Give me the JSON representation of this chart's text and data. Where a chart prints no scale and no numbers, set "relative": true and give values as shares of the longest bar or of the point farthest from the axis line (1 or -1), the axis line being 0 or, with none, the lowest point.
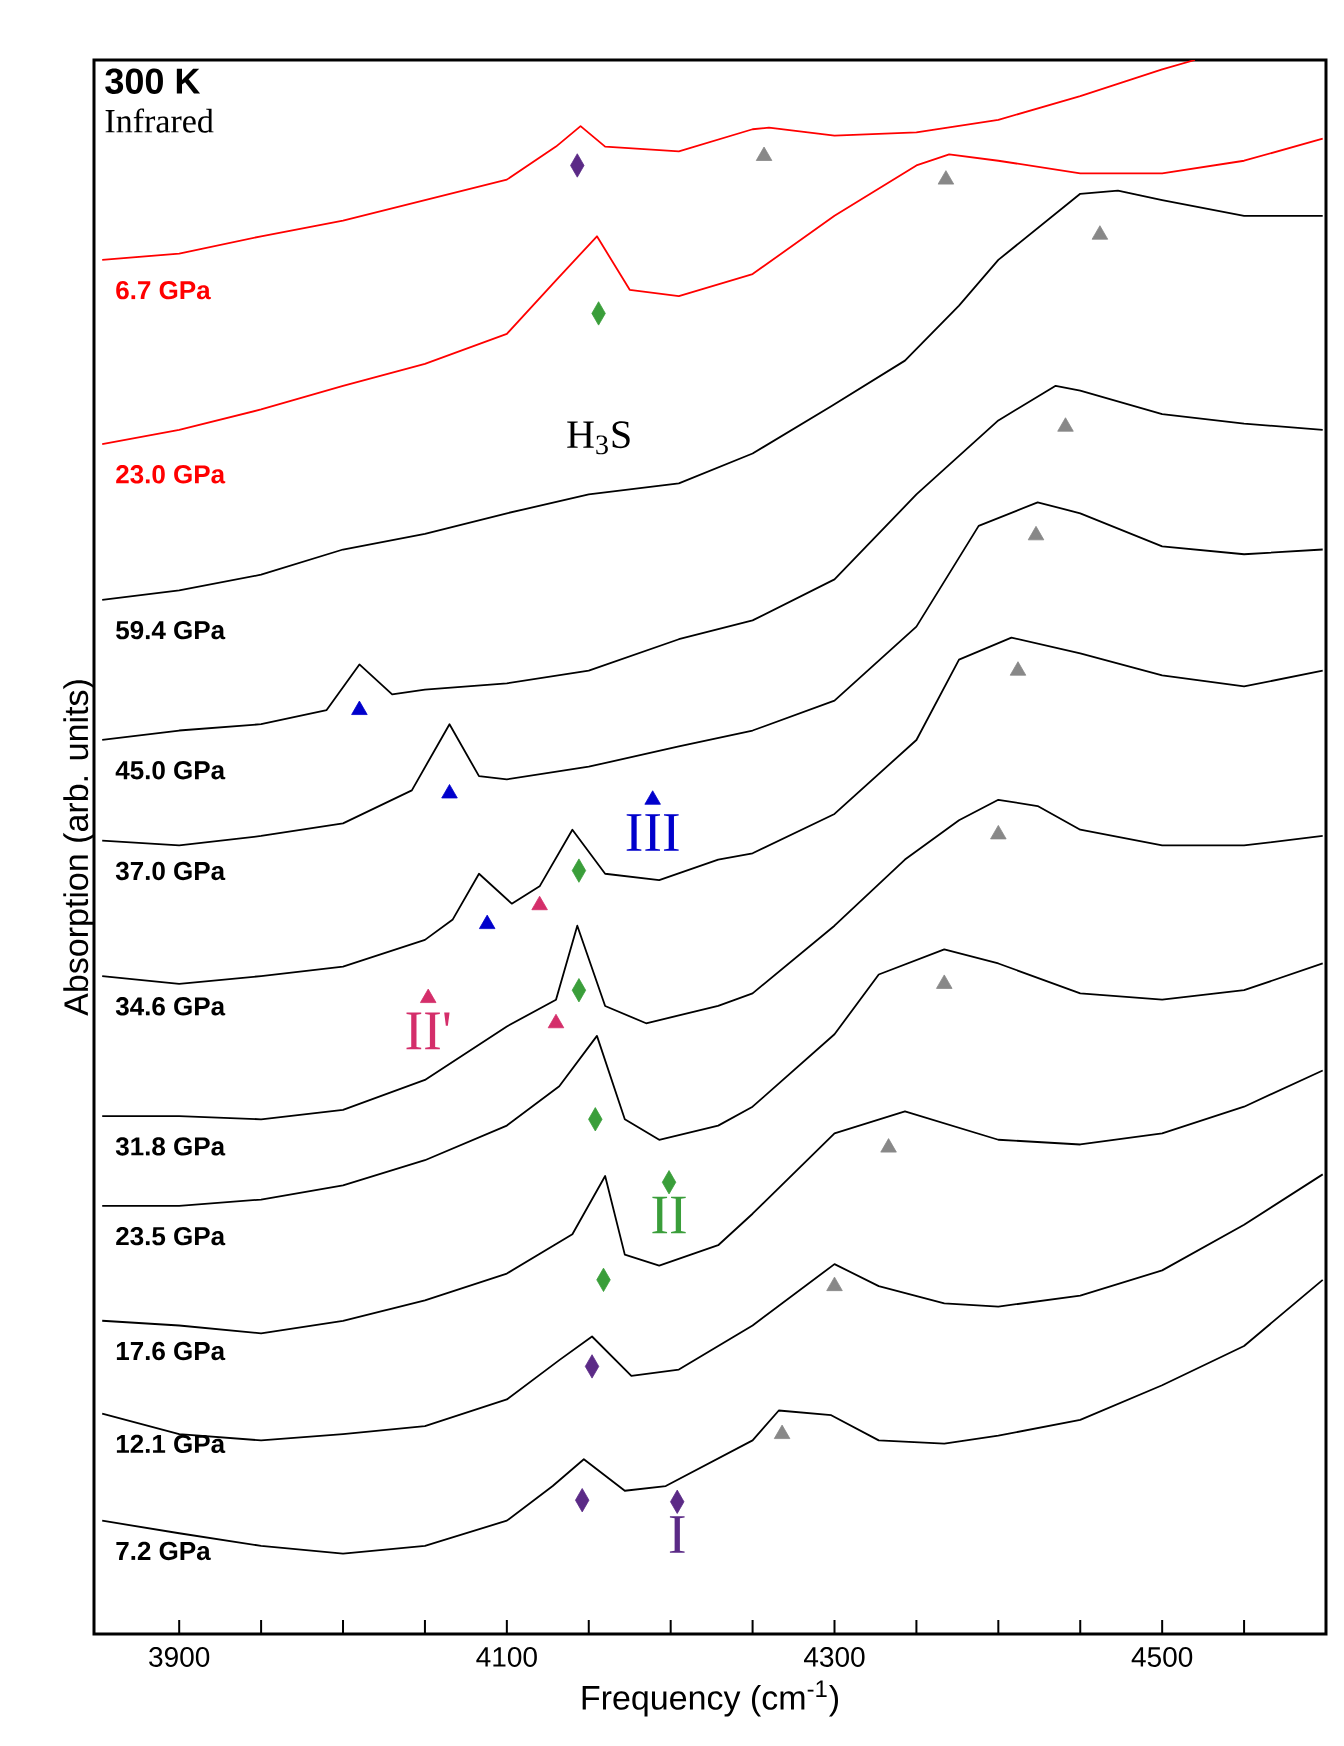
{
  "chart_data": {
    "type": "line",
    "title": "300 K",
    "subtitle": "Infrared",
    "xlabel": "Frequency (cm$^{-1}$)",
    "ylabel": "Absorption (arb. units)",
    "annotations": [
      "H$_{3}$S"
    ],
    "relative": true,
    "tick_labels": "x",
    "xlim": [
      3848,
      4600
    ],
    "xticks": [
      3900,
      {
        "value": 3950,
        "label": null
      },
      {
        "value": 4000,
        "label": null
      },
      {
        "value": 4050,
        "label": null
      },
      4100,
      {
        "value": 4150,
        "label": null
      },
      {
        "value": 4200,
        "label": null
      },
      {
        "value": 4250,
        "label": null
      },
      4300,
      {
        "value": 4350,
        "label": null
      },
      {
        "value": 4400,
        "label": null
      },
      {
        "value": 4450,
        "label": null
      },
      4500,
      {
        "value": 4550,
        "label": null
      }
    ],
    "series": [
      {
        "name": "6.7 GPa",
        "color": "#ff0000",
        "x": [
          3853,
          3900,
          3950,
          4000,
          4050,
          4100,
          4130,
          4145,
          4160,
          4205,
          4250,
          4260,
          4300,
          4350,
          4400,
          4450,
          4500,
          4520
        ],
        "values": [
          0.873,
          0.877,
          0.888,
          0.898,
          0.911,
          0.924,
          0.945,
          0.958,
          0.945,
          0.942,
          0.956,
          0.957,
          0.952,
          0.954,
          0.962,
          0.977,
          0.994,
          1.0
        ]
      },
      {
        "name": "23.0 GPa",
        "color": "#ff0000",
        "x": [
          3853,
          3900,
          3950,
          4000,
          4050,
          4100,
          4130,
          4155,
          4175,
          4205,
          4250,
          4300,
          4350,
          4370,
          4400,
          4450,
          4500,
          4550,
          4598
        ],
        "values": [
          0.756,
          0.765,
          0.778,
          0.793,
          0.807,
          0.826,
          0.86,
          0.888,
          0.854,
          0.85,
          0.864,
          0.901,
          0.933,
          0.94,
          0.936,
          0.928,
          0.928,
          0.936,
          0.95
        ]
      },
      {
        "name": "59.4 GPa",
        "color": "#000000",
        "x": [
          3853,
          3900,
          3950,
          4000,
          4050,
          4100,
          4150,
          4205,
          4250,
          4298,
          4343,
          4376,
          4400,
          4450,
          4473,
          4500,
          4550,
          4598
        ],
        "values": [
          0.657,
          0.663,
          0.673,
          0.689,
          0.699,
          0.712,
          0.724,
          0.731,
          0.75,
          0.78,
          0.809,
          0.844,
          0.873,
          0.915,
          0.917,
          0.911,
          0.901,
          0.901
        ]
      },
      {
        "name": "45.0 GPa",
        "color": "#000000",
        "x": [
          3853,
          3900,
          3950,
          3990,
          4010,
          4030,
          4050,
          4100,
          4150,
          4205,
          4250,
          4300,
          4350,
          4400,
          4435,
          4450,
          4500,
          4550,
          4598
        ],
        "values": [
          0.568,
          0.574,
          0.578,
          0.587,
          0.616,
          0.597,
          0.6,
          0.604,
          0.612,
          0.632,
          0.644,
          0.67,
          0.724,
          0.771,
          0.793,
          0.79,
          0.775,
          0.769,
          0.765
        ]
      },
      {
        "name": "37.0 GPa",
        "color": "#000000",
        "x": [
          3853,
          3900,
          3950,
          4000,
          4042,
          4065,
          4083,
          4100,
          4150,
          4205,
          4250,
          4300,
          4350,
          4388,
          4424,
          4450,
          4500,
          4550,
          4598
        ],
        "values": [
          0.504,
          0.501,
          0.507,
          0.515,
          0.536,
          0.578,
          0.545,
          0.543,
          0.551,
          0.564,
          0.574,
          0.593,
          0.64,
          0.704,
          0.719,
          0.712,
          0.691,
          0.686,
          0.689
        ]
      },
      {
        "name": "34.6 GPa",
        "color": "#000000",
        "x": [
          3853,
          3900,
          3950,
          4000,
          4050,
          4067,
          4083,
          4103,
          4120,
          4140,
          4160,
          4193,
          4229,
          4250,
          4300,
          4350,
          4376,
          4408,
          4450,
          4500,
          4550,
          4598
        ],
        "values": [
          0.418,
          0.413,
          0.418,
          0.424,
          0.441,
          0.454,
          0.483,
          0.464,
          0.475,
          0.511,
          0.483,
          0.479,
          0.492,
          0.496,
          0.521,
          0.568,
          0.619,
          0.633,
          0.623,
          0.609,
          0.602,
          0.612
        ]
      },
      {
        "name": "31.8 GPa",
        "color": "#000000",
        "x": [
          3853,
          3900,
          3950,
          4000,
          4050,
          4100,
          4130,
          4143,
          4160,
          4185,
          4229,
          4250,
          4300,
          4343,
          4376,
          4400,
          4424,
          4450,
          4500,
          4550,
          4598
        ],
        "values": [
          0.329,
          0.329,
          0.327,
          0.333,
          0.352,
          0.386,
          0.403,
          0.45,
          0.399,
          0.388,
          0.399,
          0.407,
          0.45,
          0.492,
          0.517,
          0.53,
          0.526,
          0.511,
          0.501,
          0.501,
          0.507
        ]
      },
      {
        "name": "23.5 GPa",
        "color": "#000000",
        "x": [
          3853,
          3900,
          3950,
          4000,
          4050,
          4100,
          4132,
          4155,
          4172,
          4193,
          4229,
          4250,
          4300,
          4327,
          4367,
          4400,
          4450,
          4500,
          4550,
          4598
        ],
        "values": [
          0.272,
          0.272,
          0.276,
          0.285,
          0.301,
          0.323,
          0.348,
          0.38,
          0.327,
          0.314,
          0.323,
          0.335,
          0.381,
          0.419,
          0.435,
          0.426,
          0.407,
          0.403,
          0.409,
          0.426
        ]
      },
      {
        "name": "17.6 GPa",
        "color": "#000000",
        "x": [
          3853,
          3900,
          3950,
          4000,
          4050,
          4100,
          4140,
          4160,
          4172,
          4193,
          4229,
          4250,
          4300,
          4343,
          4400,
          4450,
          4500,
          4550,
          4598
        ],
        "values": [
          0.199,
          0.196,
          0.191,
          0.199,
          0.212,
          0.229,
          0.254,
          0.291,
          0.241,
          0.234,
          0.247,
          0.267,
          0.318,
          0.332,
          0.314,
          0.311,
          0.318,
          0.335,
          0.358
        ]
      },
      {
        "name": "12.1 GPa",
        "color": "#000000",
        "x": [
          3853,
          3900,
          3950,
          4000,
          4050,
          4100,
          4132,
          4152,
          4176,
          4205,
          4250,
          4300,
          4327,
          4367,
          4400,
          4450,
          4500,
          4550,
          4598
        ],
        "values": [
          0.14,
          0.127,
          0.123,
          0.127,
          0.132,
          0.149,
          0.174,
          0.189,
          0.164,
          0.168,
          0.196,
          0.235,
          0.221,
          0.21,
          0.208,
          0.215,
          0.231,
          0.26,
          0.292
        ]
      },
      {
        "name": "7.2 GPa",
        "color": "#000000",
        "x": [
          3853,
          3900,
          3950,
          4000,
          4050,
          4100,
          4128,
          4147,
          4172,
          4197,
          4250,
          4266,
          4298,
          4327,
          4367,
          4400,
          4450,
          4500,
          4550,
          4598
        ],
        "values": [
          0.072,
          0.064,
          0.056,
          0.051,
          0.056,
          0.072,
          0.094,
          0.111,
          0.091,
          0.094,
          0.123,
          0.142,
          0.139,
          0.123,
          0.121,
          0.126,
          0.136,
          0.158,
          0.183,
          0.225
        ]
      },
      {
        "type": "scatter",
        "marker": "triangle",
        "color": "#888888",
        "x": [
          4257,
          4368,
          4462,
          4441,
          4423,
          4412,
          4400,
          4367,
          4333,
          4300,
          4268
        ],
        "values": [
          0.939,
          0.924,
          0.889,
          0.767,
          0.698,
          0.612,
          0.508,
          0.413,
          0.309,
          0.221,
          0.127
        ]
      },
      {
        "type": "scatter",
        "marker": "triangle",
        "name": "III",
        "color": "#0000cc",
        "x": [
          4010,
          4065,
          4088,
          4189
        ],
        "values": [
          0.587,
          0.534,
          0.451,
          0.53
        ]
      },
      {
        "type": "scatter",
        "marker": "triangle",
        "name": "II'",
        "color": "#d42e6a",
        "x": [
          4120,
          4130,
          4052
        ],
        "values": [
          0.463,
          0.388,
          0.404
        ]
      },
      {
        "type": "scatter",
        "marker": "diamond",
        "name": "II",
        "color": "#3a9e3a",
        "x": [
          4156,
          4144,
          4144,
          4154,
          4159,
          4199
        ],
        "values": [
          0.839,
          0.485,
          0.409,
          0.327,
          0.225,
          0.287
        ]
      },
      {
        "type": "scatter",
        "marker": "diamond",
        "name": "I",
        "color": "#5b2a86",
        "x": [
          4143,
          4152,
          4146,
          4204
        ],
        "values": [
          0.933,
          0.17,
          0.085,
          0.084
        ]
      }
    ]
  }
}
